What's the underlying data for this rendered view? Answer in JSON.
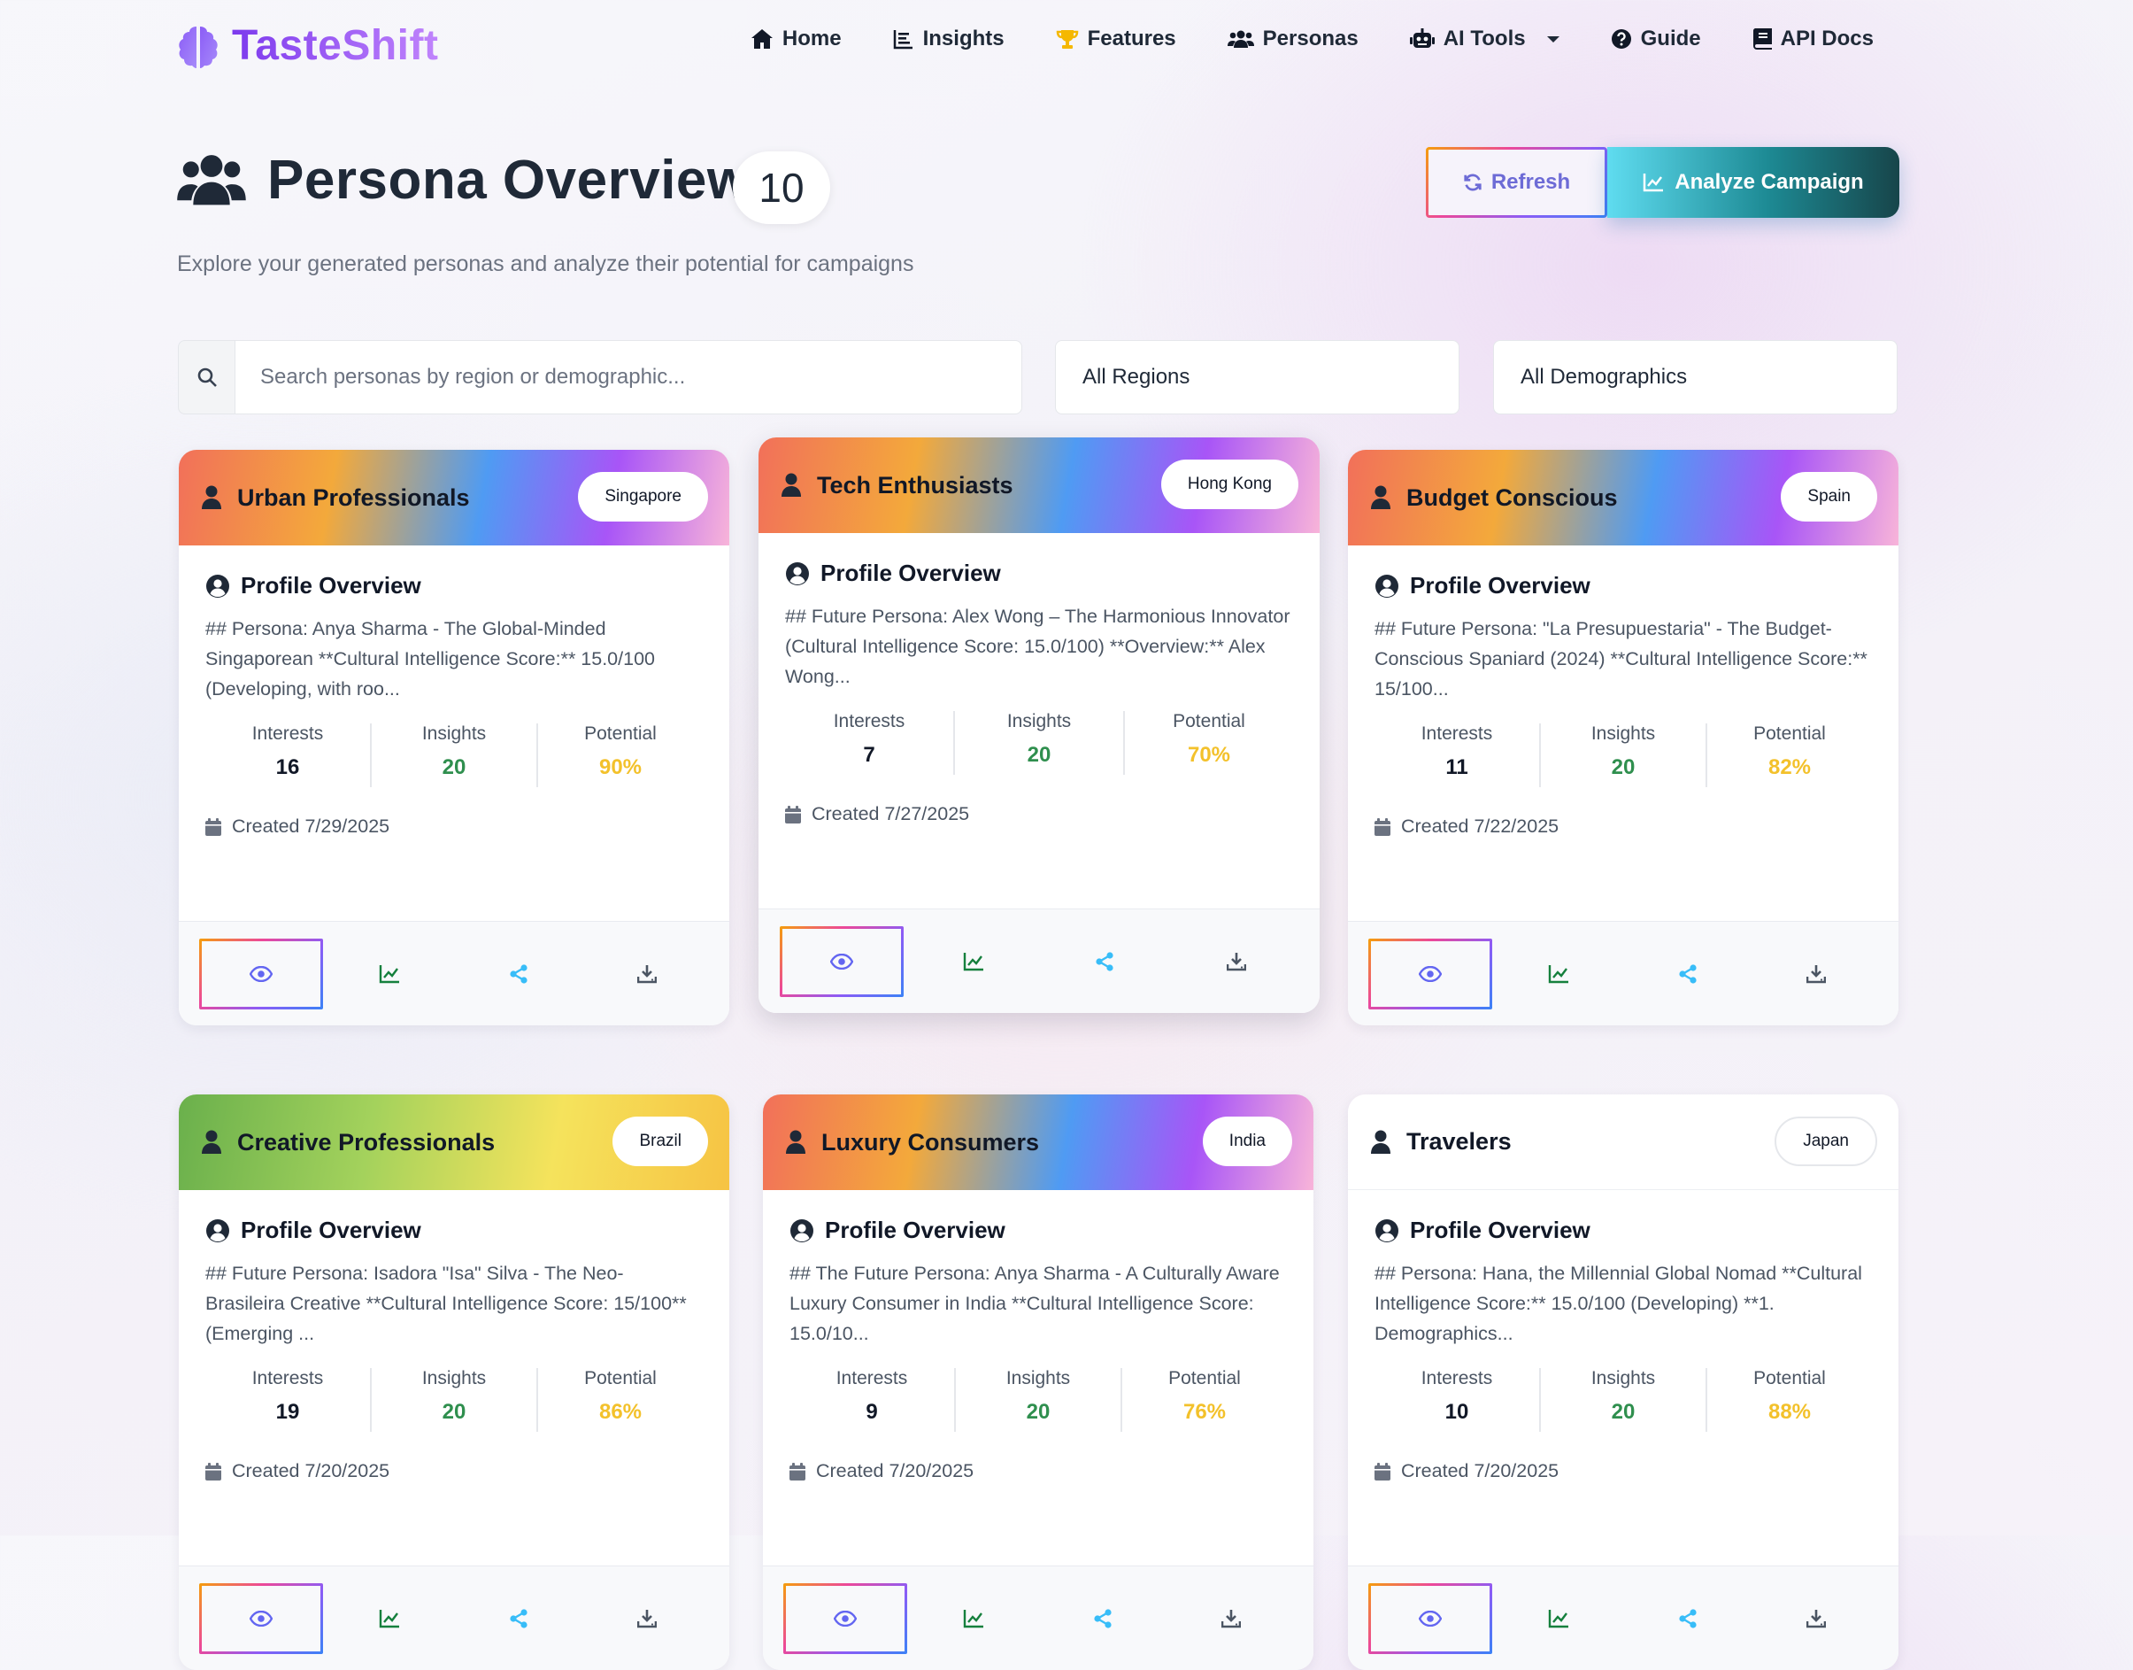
{
  "brand": {
    "name": "TasteShift"
  },
  "nav": {
    "items": [
      {
        "label": "Home",
        "icon": "home-icon"
      },
      {
        "label": "Insights",
        "icon": "list-icon"
      },
      {
        "label": "Features",
        "icon": "trophy-icon"
      },
      {
        "label": "Personas",
        "icon": "users-icon"
      },
      {
        "label": "AI Tools",
        "icon": "robot-icon"
      },
      {
        "label": "Guide",
        "icon": "question-icon"
      },
      {
        "label": "API Docs",
        "icon": "book-icon"
      }
    ]
  },
  "header": {
    "title": "Persona Overview",
    "count": "10",
    "subtitle": "Explore your generated personas and analyze their potential for campaigns",
    "refresh_label": "Refresh",
    "analyze_label": "Analyze Campaign"
  },
  "filters": {
    "search_placeholder": "Search personas by region or demographic...",
    "region": "All Regions",
    "demographic": "All Demographics"
  },
  "labels": {
    "interests": "Interests",
    "insights": "Insights",
    "potential": "Potential",
    "profile": "Profile Overview"
  },
  "colors": {
    "accent": "#7c3aed",
    "insights_value": "#2f8f4e",
    "potential_value": "#f3c12b"
  },
  "personas": [
    {
      "title": "Urban Professionals",
      "region": "Singapore",
      "profile": "## Persona: Anya Sharma - The Global-Minded Singaporean **Cultural Intelligence Score:** 15.0/100 (Developing, with roo...",
      "interests": "16",
      "insights": "20",
      "potential": "90%",
      "created": "Created 7/29/2025"
    },
    {
      "title": "Tech Enthusiasts",
      "region": "Hong Kong",
      "profile": "## Future Persona: Alex Wong – The Harmonious Innovator (Cultural Intelligence Score: 15.0/100) **Overview:** Alex Wong...",
      "interests": "7",
      "insights": "20",
      "potential": "70%",
      "created": "Created 7/27/2025"
    },
    {
      "title": "Budget Conscious",
      "region": "Spain",
      "profile": "## Future Persona: \"La Presupuestaria\" - The Budget-Conscious Spaniard (2024) **Cultural Intelligence Score:** 15/100...",
      "interests": "11",
      "insights": "20",
      "potential": "82%",
      "created": "Created 7/22/2025"
    },
    {
      "title": "Creative Professionals",
      "region": "Brazil",
      "profile": "## Future Persona: Isadora \"Isa\" Silva - The Neo-Brasileira Creative **Cultural Intelligence Score: 15/100** (Emerging ...",
      "interests": "19",
      "insights": "20",
      "potential": "86%",
      "created": "Created 7/20/2025"
    },
    {
      "title": "Luxury Consumers",
      "region": "India",
      "profile": "## The Future Persona: Anya Sharma - A Culturally Aware Luxury Consumer in India **Cultural Intelligence Score: 15.0/10...",
      "interests": "9",
      "insights": "20",
      "potential": "76%",
      "created": "Created 7/20/2025"
    },
    {
      "title": "Travelers",
      "region": "Japan",
      "profile": "## Persona: Hana, the Millennial Global Nomad **Cultural Intelligence Score:** 15.0/100 (Developing) **1. Demographics...",
      "interests": "10",
      "insights": "20",
      "potential": "88%",
      "created": "Created 7/20/2025"
    }
  ],
  "actions": [
    {
      "name": "view",
      "icon": "eye-icon"
    },
    {
      "name": "analyze",
      "icon": "chart-line-icon"
    },
    {
      "name": "share",
      "icon": "share-icon"
    },
    {
      "name": "download",
      "icon": "download-icon"
    }
  ]
}
